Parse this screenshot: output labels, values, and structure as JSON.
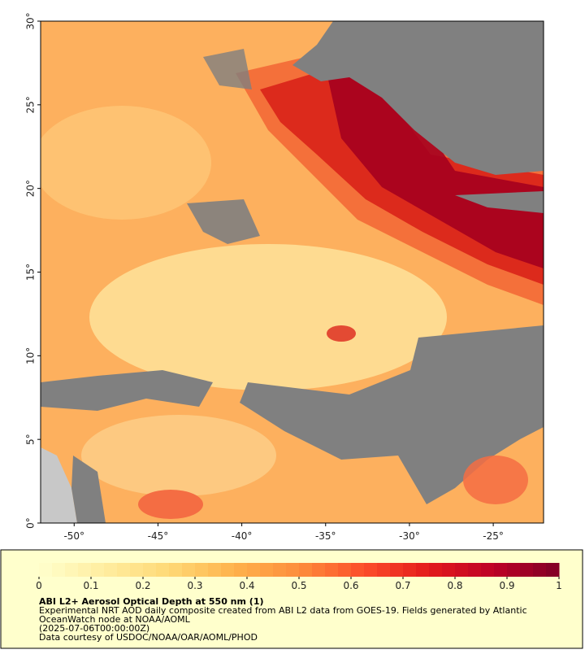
{
  "map": {
    "xlim": [
      -52,
      -22
    ],
    "ylim": [
      0,
      30
    ],
    "xticks": [
      {
        "value": -50,
        "label": "-50°"
      },
      {
        "value": -45,
        "label": "-45°"
      },
      {
        "value": -40,
        "label": "-40°"
      },
      {
        "value": -35,
        "label": "-35°"
      },
      {
        "value": -30,
        "label": "-30°"
      },
      {
        "value": -25,
        "label": "-25°"
      }
    ],
    "yticks": [
      {
        "value": 0,
        "label": "0°"
      },
      {
        "value": 5,
        "label": "5°"
      },
      {
        "value": 10,
        "label": "10°"
      },
      {
        "value": 15,
        "label": "15°"
      },
      {
        "value": 20,
        "label": "20°"
      },
      {
        "value": 25,
        "label": "25°"
      },
      {
        "value": 30,
        "label": "30°"
      }
    ]
  },
  "colorbar": {
    "lim": [
      0,
      1
    ],
    "ticks": [
      0,
      0.1,
      0.2,
      0.3,
      0.4,
      0.5,
      0.6,
      0.7,
      0.8,
      0.9,
      1
    ],
    "colormap": [
      "#ffffcc",
      "#ffeda0",
      "#fed976",
      "#feb24c",
      "#fd8d3c",
      "#fc4e2a",
      "#e31a1c",
      "#bd0026",
      "#800026"
    ]
  },
  "caption": {
    "title": "ABI L2+ Aerosol Optical Depth at 550 nm (1)",
    "lines": [
      "Experimental NRT AOD daily composite created from ABI L2 data from GOES-19. Fields generated by Atlantic",
      "OceanWatch node at NOAA/AOML",
      "(2025-07-06T00:00:00Z)",
      "Data courtesy of USDOC/NOAA/OAR/AOML/PHOD"
    ]
  }
}
